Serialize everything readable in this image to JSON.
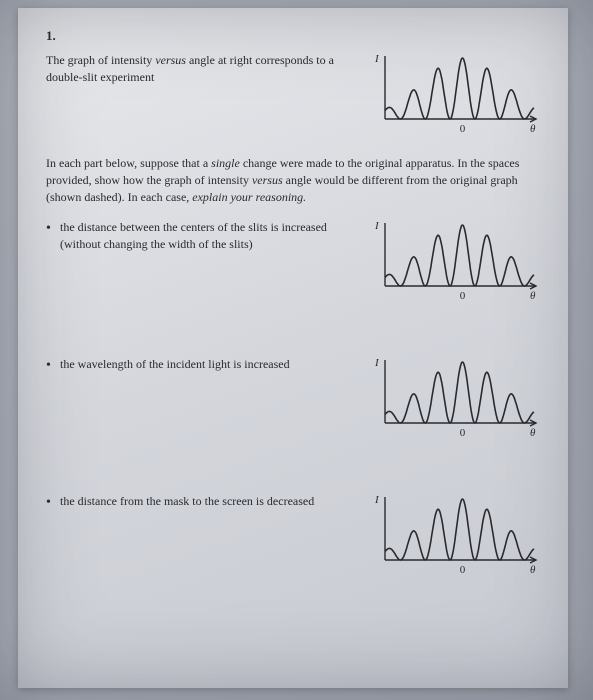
{
  "question_number": "1.",
  "intro": "The graph of intensity <span class='ital'>versus</span> angle at right corresponds to a double-slit experiment",
  "instructions": "In each part below, suppose that a <span class='ital'>single</span> change were made to the original apparatus. In the spaces provided, show how the graph of intensity <span class='ital'>versus</span> angle would be different from the original graph (shown dashed). In each case, <span class='ital'>explain your reasoning.</span>",
  "parts": [
    {
      "text": "the distance between the centers of the slits is increased (without changing the width of the slits)"
    },
    {
      "text": "the wavelength of the incident light is increased"
    },
    {
      "text": "the distance from the mask to the screen is decreased"
    }
  ],
  "axis_labels": {
    "y": "I",
    "x": "θ",
    "origin": "0"
  },
  "graph": {
    "type": "line",
    "solid": true,
    "dashed_overlay_on_parts": true,
    "peaks": 6,
    "stroke_color": "#2a2a2e",
    "stroke_width": 1.6,
    "dashed_color": "#5a5a60",
    "dashed_width": 0.9,
    "label_fontsize": 11,
    "width": 175,
    "height": 85
  }
}
